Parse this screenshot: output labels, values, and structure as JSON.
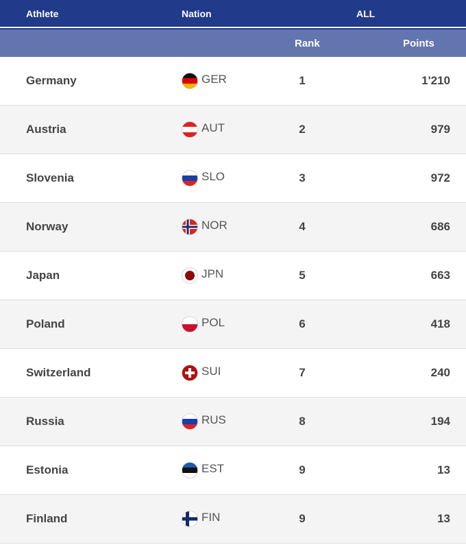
{
  "header": {
    "athlete": "Athlete",
    "nation": "Nation",
    "all": "ALL",
    "rank": "Rank",
    "points": "Points"
  },
  "rows": [
    {
      "name": "Germany",
      "code": "GER",
      "rank": "1",
      "points": "1'210"
    },
    {
      "name": "Austria",
      "code": "AUT",
      "rank": "2",
      "points": "979"
    },
    {
      "name": "Slovenia",
      "code": "SLO",
      "rank": "3",
      "points": "972"
    },
    {
      "name": "Norway",
      "code": "NOR",
      "rank": "4",
      "points": "686"
    },
    {
      "name": "Japan",
      "code": "JPN",
      "rank": "5",
      "points": "663"
    },
    {
      "name": "Poland",
      "code": "POL",
      "rank": "6",
      "points": "418"
    },
    {
      "name": "Switzerland",
      "code": "SUI",
      "rank": "7",
      "points": "240"
    },
    {
      "name": "Russia",
      "code": "RUS",
      "rank": "8",
      "points": "194"
    },
    {
      "name": "Estonia",
      "code": "EST",
      "rank": "9",
      "points": "13"
    },
    {
      "name": "Finland",
      "code": "FIN",
      "rank": "9",
      "points": "13"
    }
  ],
  "colors": {
    "header": "#213a8a",
    "subheader": "#6275ae"
  }
}
